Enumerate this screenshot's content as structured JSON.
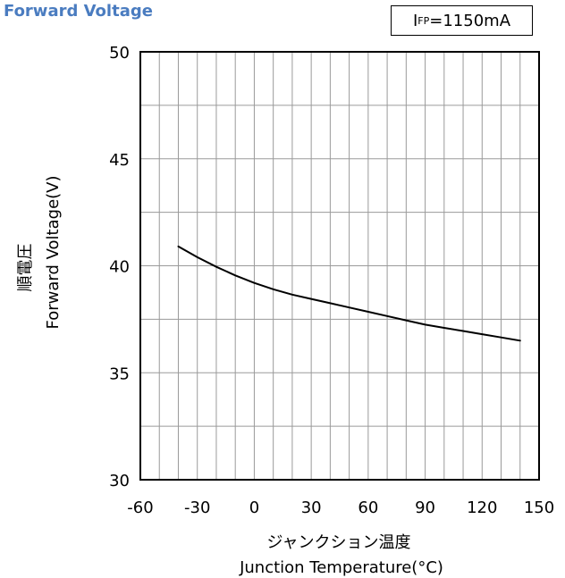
{
  "title": "Forward Voltage",
  "condition": {
    "prefix": "I",
    "subscript": "FP",
    "suffix": "=1150mA"
  },
  "chart_data": {
    "type": "line",
    "title": "Forward Voltage",
    "xlabel_ja": "ジャンクション温度",
    "xlabel": "Junction Temperature(°C)",
    "ylabel_ja": "順電圧",
    "ylabel": "Forward Voltage(V)",
    "xlim": [
      -60,
      150
    ],
    "ylim": [
      30,
      50
    ],
    "x_ticks": [
      -60,
      -30,
      0,
      30,
      60,
      90,
      120,
      150
    ],
    "y_ticks": [
      30,
      35,
      40,
      45,
      50
    ],
    "x_minor_step": 10,
    "y_minor_step": 2.5,
    "grid": true,
    "series": [
      {
        "x": [
          -40,
          -30,
          -20,
          -10,
          0,
          10,
          20,
          30,
          40,
          50,
          60,
          70,
          80,
          90,
          100,
          110,
          120,
          130,
          140
        ],
        "y": [
          40.9,
          40.4,
          39.95,
          39.55,
          39.2,
          38.9,
          38.65,
          38.45,
          38.25,
          38.05,
          37.85,
          37.65,
          37.45,
          37.25,
          37.1,
          36.95,
          36.8,
          36.65,
          36.5
        ]
      }
    ]
  }
}
